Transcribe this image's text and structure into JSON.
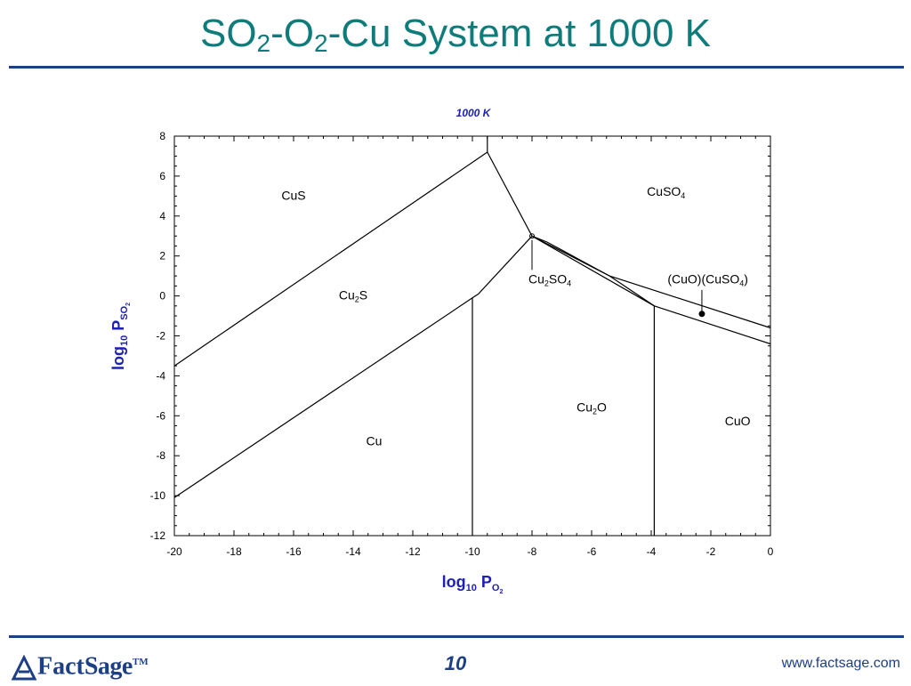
{
  "slide": {
    "title_parts": [
      "SO",
      "2",
      "-O",
      "2",
      "-Cu System at 1000 K"
    ],
    "page_number": "10",
    "footer_url": "www.factsage.com",
    "logo": {
      "text_a": "Fact",
      "text_b": "Sage",
      "tm": "TM"
    }
  },
  "colors": {
    "title": "#0e7c7b",
    "accent": "#1c3f86",
    "line": "#000000"
  },
  "chart_data": {
    "type": "phase-diagram",
    "title": "1000 K",
    "xlabel": {
      "base": "log",
      "sub": "10",
      "main": " P",
      "subsub": "O",
      "subsub2": "2"
    },
    "ylabel": {
      "base": "log",
      "sub": "10",
      "main": " P",
      "subsub": "SO",
      "subsub2": "2"
    },
    "xlim": [
      -20,
      0
    ],
    "ylim": [
      -12,
      8
    ],
    "xticks": [
      -20,
      -18,
      -16,
      -14,
      -12,
      -10,
      -8,
      -6,
      -4,
      -2,
      0
    ],
    "yticks": [
      -12,
      -10,
      -8,
      -6,
      -4,
      -2,
      0,
      2,
      4,
      6,
      8
    ],
    "grid": false,
    "boundaries": [
      {
        "name": "cus-cu2s-line",
        "points": [
          [
            -20,
            -3.5
          ],
          [
            -9.5,
            7.2
          ]
        ]
      },
      {
        "name": "cu2s-cu-line",
        "points": [
          [
            -20,
            -10.1
          ],
          [
            -10,
            -0.1
          ],
          [
            -9.8,
            0.1
          ],
          [
            -8.0,
            3.0
          ]
        ]
      },
      {
        "name": "cu-cu2o-line",
        "points": [
          [
            -10,
            -0.1
          ],
          [
            -10,
            -12
          ]
        ]
      },
      {
        "name": "cus-cuso4-line",
        "points": [
          [
            -9.5,
            7.2
          ],
          [
            -9.5,
            8
          ]
        ]
      },
      {
        "name": "cu2s-cuso4-line",
        "points": [
          [
            -9.5,
            7.2
          ],
          [
            -8.0,
            3.0
          ]
        ]
      },
      {
        "name": "cu2so4-upper-line",
        "points": [
          [
            -8.0,
            3.0
          ],
          [
            -7.5,
            2.7
          ],
          [
            -5.4,
            1.0
          ],
          [
            0,
            -1.6
          ]
        ]
      },
      {
        "name": "cu2so4-lower-line",
        "points": [
          [
            -8.0,
            3.0
          ],
          [
            -5.4,
            1.0
          ],
          [
            -3.9,
            -0.5
          ],
          [
            0,
            -2.4
          ]
        ]
      },
      {
        "name": "cu2o-cuo-line",
        "points": [
          [
            -3.9,
            -0.5
          ],
          [
            -3.9,
            -12
          ]
        ]
      },
      {
        "name": "cu2o-cu2so4-line",
        "points": [
          [
            -8.0,
            3.0
          ],
          [
            -3.9,
            -0.5
          ]
        ]
      }
    ],
    "regions": [
      {
        "name": "CuS",
        "base": "CuS",
        "x": -16.0,
        "y": 5.0
      },
      {
        "name": "CuSO4",
        "parts": [
          "CuSO",
          "4"
        ],
        "x": -3.5,
        "y": 5.2
      },
      {
        "name": "Cu2S",
        "parts": [
          "Cu",
          "2",
          "S"
        ],
        "x": -14.0,
        "y": 0.0
      },
      {
        "name": "Cu2SO4",
        "parts": [
          "Cu",
          "2",
          "SO",
          "4"
        ],
        "x": -7.4,
        "y": 0.8
      },
      {
        "name": "CuO_CuSO4",
        "parts": [
          "(CuO)(CuSO",
          "4",
          ")"
        ],
        "x": -2.1,
        "y": 0.8
      },
      {
        "name": "Cu2O",
        "parts": [
          "Cu",
          "2",
          "O"
        ],
        "x": -6.0,
        "y": -5.6
      },
      {
        "name": "CuO",
        "base": "CuO",
        "x": -1.1,
        "y": -6.3
      },
      {
        "name": "Cu",
        "base": "Cu",
        "x": -13.3,
        "y": -7.3
      }
    ],
    "leaders": [
      {
        "name": "cu2so4-leader",
        "from": [
          -8.0,
          2.8
        ],
        "to": [
          -8.0,
          1.3
        ]
      },
      {
        "name": "cuo-cuso4-leader",
        "from": [
          -2.3,
          0.3
        ],
        "to": [
          -2.3,
          -0.9
        ]
      }
    ],
    "markers": [
      {
        "name": "cuo-cuso4-point",
        "x": -2.3,
        "y": -0.9
      },
      {
        "name": "triple-point-marker",
        "x": -8.0,
        "y": 3.0
      }
    ]
  }
}
